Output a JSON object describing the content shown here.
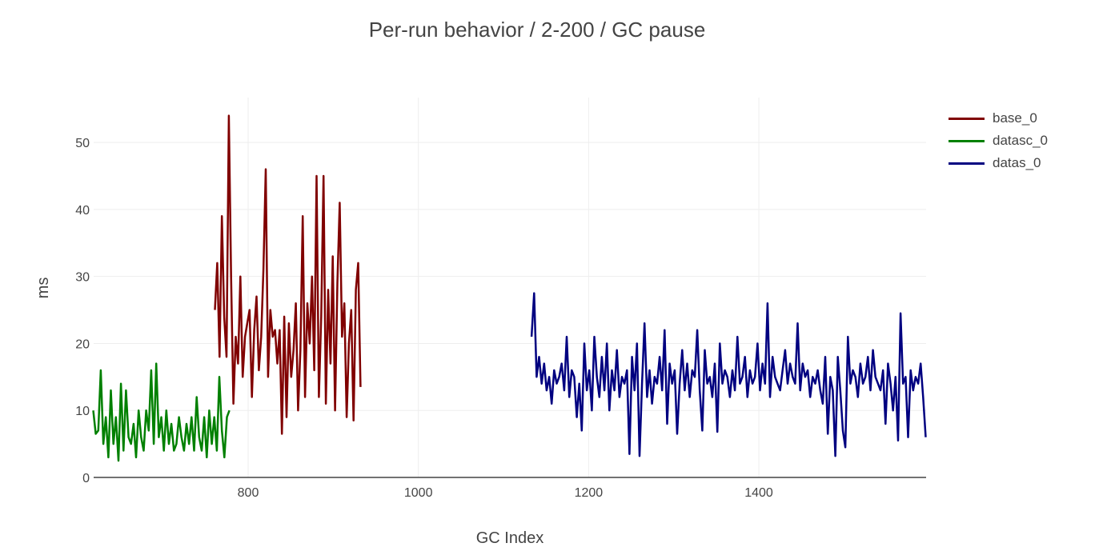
{
  "chart_data": {
    "type": "line",
    "title": "Per-run behavior / 2-200 / GC pause",
    "xlabel": "GC Index",
    "ylabel": "ms",
    "xlim": [
      618.5,
      1596.5
    ],
    "ylim": [
      0,
      56.7
    ],
    "xticks": [
      800,
      1000,
      1200,
      1400
    ],
    "yticks": [
      0,
      10,
      20,
      30,
      40,
      50
    ],
    "grid": true,
    "legend_placement": "top-right",
    "series": [
      {
        "name": "base_0",
        "color": "#800000",
        "x_start": 761,
        "x_end": 932,
        "values": [
          25,
          32,
          18,
          39,
          24,
          18,
          54,
          30,
          11,
          21,
          17,
          30,
          15,
          21,
          23,
          25,
          12,
          22,
          27,
          16,
          21,
          31,
          46,
          15,
          25,
          21,
          22,
          17,
          22,
          6.5,
          24,
          9,
          23,
          15,
          19,
          26,
          10,
          19,
          39,
          12,
          26,
          20,
          30,
          16,
          45,
          12,
          24,
          45,
          11,
          28,
          17,
          33,
          10,
          29,
          41,
          21,
          26,
          9,
          20,
          25,
          8.5,
          28,
          32,
          13.5
        ]
      },
      {
        "name": "datasc_0",
        "color": "#008000",
        "x_start": 618,
        "x_end": 778,
        "values": [
          10,
          6.5,
          7,
          16,
          5,
          9,
          3,
          13,
          5,
          9,
          2.5,
          14,
          4,
          13,
          6,
          5,
          8,
          3,
          10,
          6,
          4,
          10,
          7,
          16,
          5,
          17,
          6,
          9,
          4,
          10,
          5,
          8,
          4,
          5,
          9,
          6,
          4,
          8,
          5,
          9,
          4,
          12,
          6,
          4,
          9,
          3,
          10,
          5,
          9,
          4,
          15,
          7,
          3,
          9,
          10
        ]
      },
      {
        "name": "datas_0",
        "color": "#000080",
        "x_start": 1133,
        "x_end": 1596,
        "values": [
          21,
          27.5,
          15,
          18,
          14,
          17,
          13,
          15,
          11,
          16,
          14,
          15,
          17,
          13,
          21,
          12,
          16,
          15,
          9,
          14,
          7,
          20,
          13,
          16,
          10,
          21,
          15,
          12,
          18,
          13,
          20,
          10,
          16,
          13,
          19,
          12,
          15,
          14,
          16,
          3.5,
          18,
          13,
          20,
          3.2,
          14,
          23,
          12,
          16,
          11,
          15,
          14,
          18,
          13,
          22,
          8,
          17,
          14,
          16,
          6.5,
          14,
          19,
          13,
          17,
          12,
          16,
          15,
          22,
          13,
          7,
          19,
          14,
          15,
          12,
          17,
          6.8,
          20,
          14,
          16,
          15,
          12,
          16,
          13,
          21,
          14,
          15,
          18,
          12,
          16,
          14,
          15,
          20,
          13,
          17,
          14,
          26,
          12,
          18,
          15,
          14,
          13,
          16,
          19,
          14,
          17,
          15,
          14,
          23,
          13,
          17,
          15,
          16,
          12,
          15,
          14,
          16,
          13,
          11,
          18,
          6.5,
          15,
          13,
          3.2,
          18,
          13,
          7,
          4.5,
          21,
          14,
          16,
          15,
          12,
          17,
          14,
          15,
          18,
          13,
          19,
          15,
          14,
          13,
          16,
          8,
          17,
          14,
          10,
          15,
          5.5,
          24.5,
          14,
          15,
          6,
          16,
          13,
          15,
          14,
          17,
          12,
          6
        ]
      }
    ]
  }
}
